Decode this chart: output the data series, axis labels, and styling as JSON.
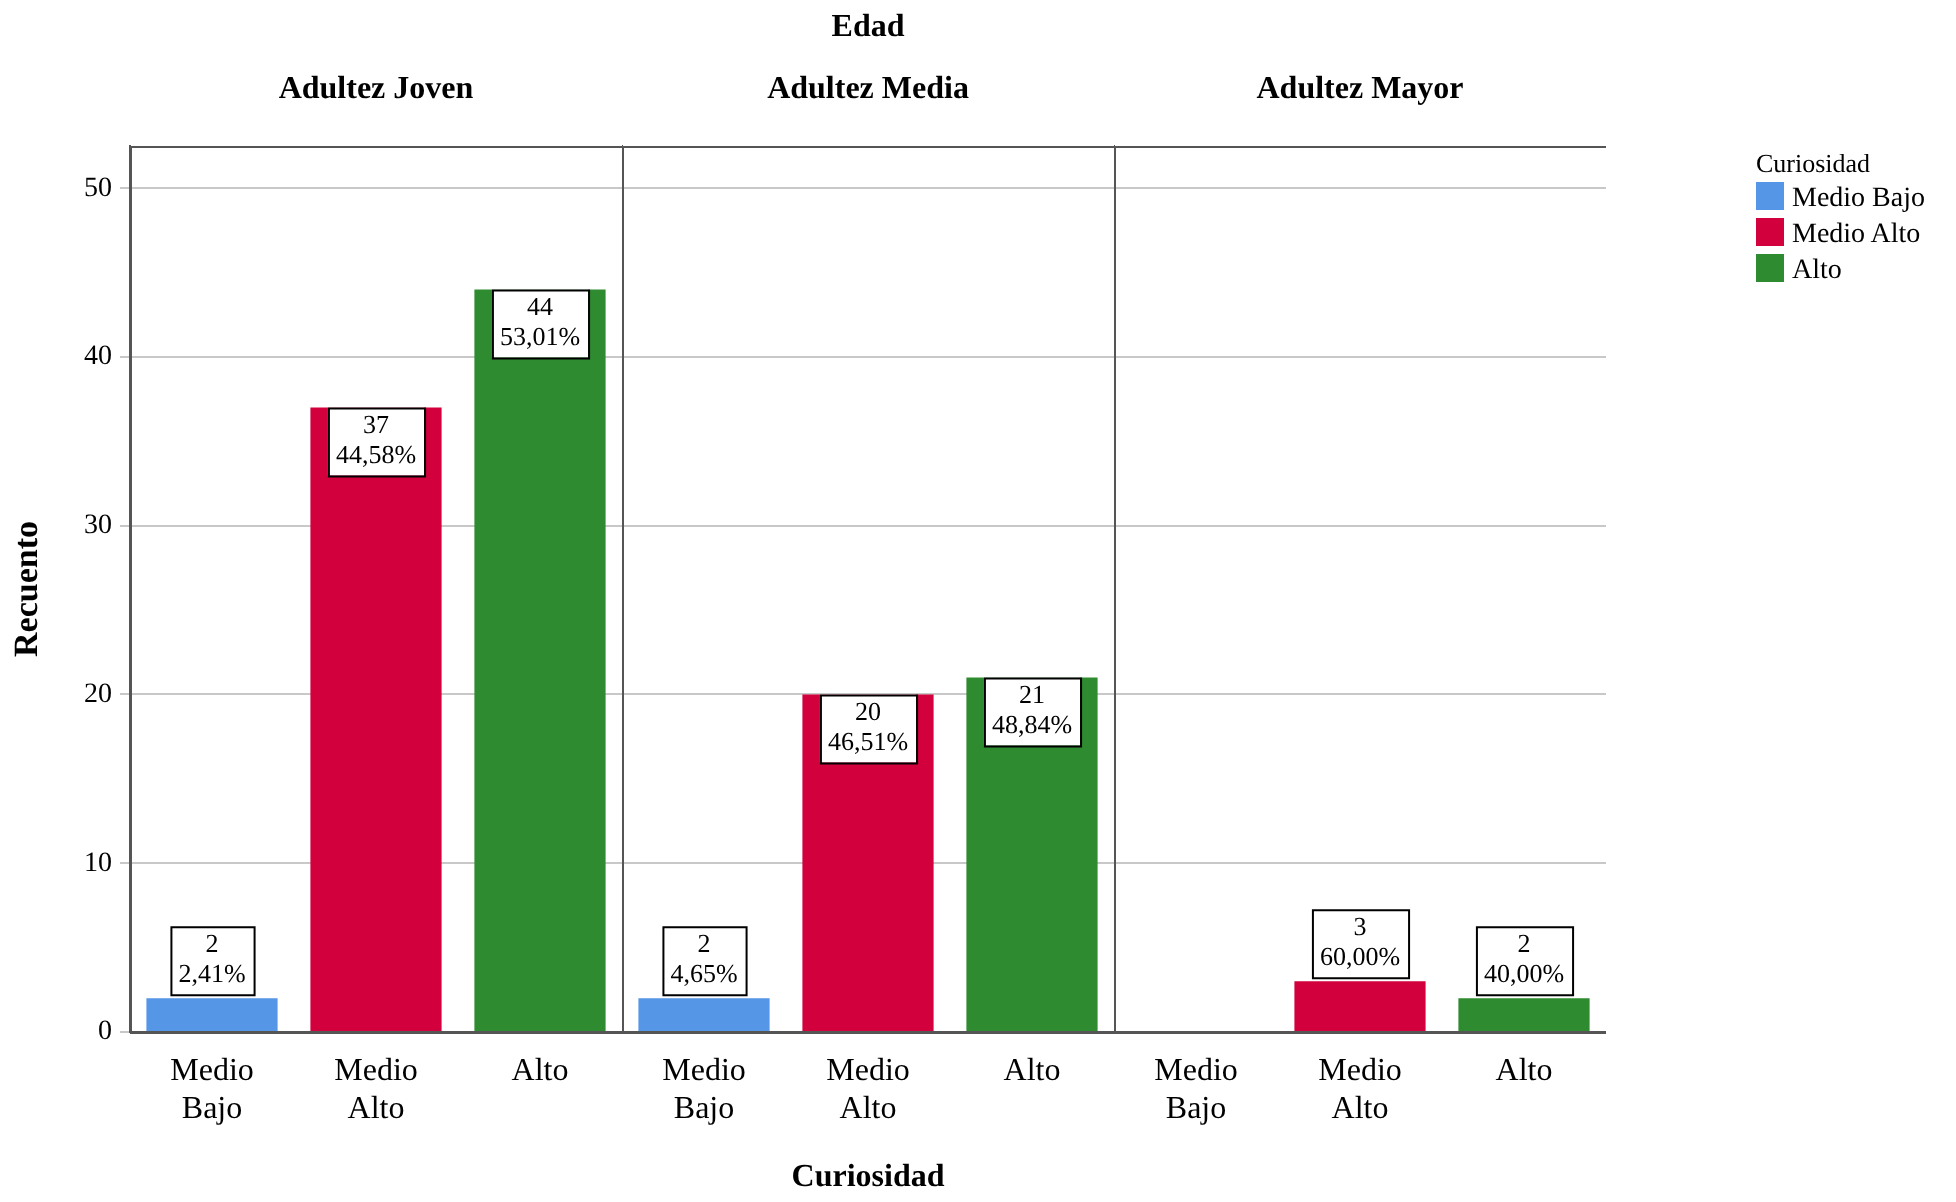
{
  "chart_data": [
    {
      "type": "bar",
      "subtitle": "Adultez Joven",
      "ylabel": "Recuento",
      "categories": [
        "Medio Bajo",
        "Medio Alto",
        "Alto"
      ],
      "series": [
        {
          "color": "#5596e6",
          "values": [
            2,
            null,
            null
          ],
          "value_labels": [
            "2\n2,41%",
            null,
            null
          ]
        },
        {
          "color": "#d2003c",
          "values": [
            null,
            37,
            null
          ],
          "value_labels": [
            null,
            "37\n44,58%",
            null
          ]
        },
        {
          "color": "#2e8b2f",
          "values": [
            null,
            null,
            44
          ],
          "value_labels": [
            null,
            null,
            "44\n53,01%"
          ]
        }
      ],
      "ylim": [
        0,
        52.5
      ],
      "yticks": [
        0,
        10,
        20,
        30,
        40,
        50
      ],
      "grid": "y",
      "legend": false
    },
    {
      "type": "bar",
      "title": "Edad",
      "subtitle": "Adultez Media",
      "xlabel": "Curiosidad",
      "categories": [
        "Medio Bajo",
        "Medio Alto",
        "Alto"
      ],
      "series": [
        {
          "color": "#5596e6",
          "values": [
            2,
            null,
            null
          ],
          "value_labels": [
            "2\n4,65%",
            null,
            null
          ]
        },
        {
          "color": "#d2003c",
          "values": [
            null,
            20,
            null
          ],
          "value_labels": [
            null,
            "20\n46,51%",
            null
          ]
        },
        {
          "color": "#2e8b2f",
          "values": [
            null,
            null,
            21
          ],
          "value_labels": [
            null,
            null,
            "21\n48,84%"
          ]
        }
      ],
      "ylim": [
        0,
        52.5
      ],
      "yticks": [
        0,
        10,
        20,
        30,
        40,
        50
      ],
      "grid": "y",
      "tick_labels": "x",
      "legend": false
    },
    {
      "type": "bar",
      "subtitle": "Adultez Mayor",
      "legend_title": "Curiosidad",
      "categories": [
        "Medio Bajo",
        "Medio Alto",
        "Alto"
      ],
      "series": [
        {
          "name": "Medio Bajo",
          "color": "#5596e6",
          "values": [
            0,
            null,
            null
          ]
        },
        {
          "name": "Medio Alto",
          "color": "#d2003c",
          "values": [
            null,
            3,
            null
          ],
          "value_labels": [
            null,
            "3\n60,00%",
            null
          ]
        },
        {
          "name": "Alto",
          "color": "#2e8b2f",
          "values": [
            null,
            null,
            2
          ],
          "value_labels": [
            null,
            null,
            "2\n40,00%"
          ]
        }
      ],
      "ylim": [
        0,
        52.5
      ],
      "yticks": [
        0,
        10,
        20,
        30,
        40,
        50
      ],
      "grid": "y",
      "tick_labels": "x",
      "legend": "top right"
    }
  ]
}
